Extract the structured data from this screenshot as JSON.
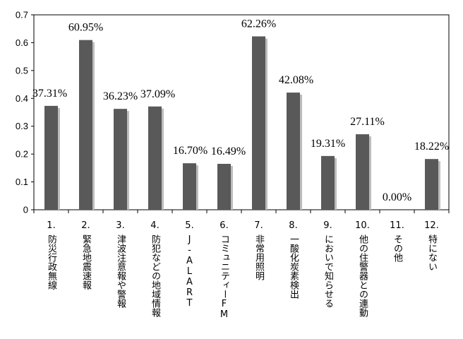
{
  "chart_data": {
    "type": "bar",
    "ylim": [
      0,
      0.7
    ],
    "yticks": [
      "0",
      "0.1",
      "0.2",
      "0.3",
      "0.4",
      "0.5",
      "0.6",
      "0.7"
    ],
    "categories": [
      {
        "num": "1.",
        "text": "防災行政無線"
      },
      {
        "num": "2.",
        "text": "緊急地震速報"
      },
      {
        "num": "3.",
        "text": "津波注意報や警報"
      },
      {
        "num": "4.",
        "text": "防犯などの地域情報"
      },
      {
        "num": "5.",
        "text": "J-ALART"
      },
      {
        "num": "6.",
        "text": "コミュニティーFM"
      },
      {
        "num": "7.",
        "text": "非常用照明"
      },
      {
        "num": "8.",
        "text": "一酸化炭素検出"
      },
      {
        "num": "9.",
        "text": "においで知らせる"
      },
      {
        "num": "10.",
        "text": "他の住警器との連動"
      },
      {
        "num": "11.",
        "text": "その他"
      },
      {
        "num": "12.",
        "text": "特にない"
      }
    ],
    "values": [
      0.3731,
      0.6095,
      0.3623,
      0.3709,
      0.167,
      0.1649,
      0.6226,
      0.4208,
      0.1931,
      0.2711,
      0.0,
      0.1822
    ],
    "data_labels": [
      "37.31%",
      "60.95%",
      "36.23%",
      "37.09%",
      "16.70%",
      "16.49%",
      "62.26%",
      "42.08%",
      "19.31%",
      "27.11%",
      "0.00%",
      "18.22%"
    ],
    "grid": false,
    "bar_color": "#595959"
  }
}
